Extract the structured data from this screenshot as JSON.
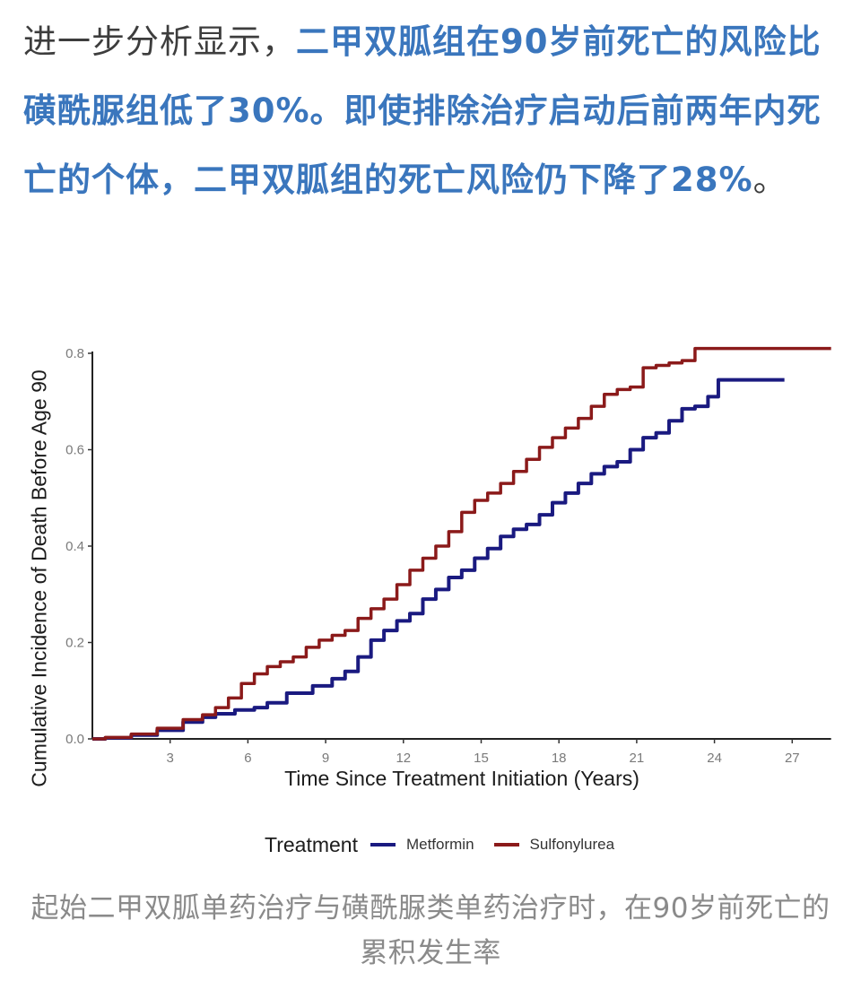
{
  "article": {
    "intro_plain": "进一步分析显示，",
    "intro_highlight": "二甲双胍组在90岁前死亡的风险比磺酰脲组低了30%。即使排除治疗启动后前两年内死亡的个体，二甲双胍组的死亡风险仍下降了28%",
    "intro_end": "。",
    "caption": "起始二甲双胍单药治疗与磺酰脲类单药治疗时，在90岁前死亡的累积发生率",
    "highlight_color": "#3a76bd"
  },
  "chart_data": {
    "type": "line",
    "title": "",
    "xlabel": "Time Since Treatment Initiation (Years)",
    "ylabel": "Cumulative Incidence of Death Before Age 90",
    "xlim": [
      0,
      28.5
    ],
    "ylim": [
      0,
      0.8
    ],
    "xticks": [
      3,
      6,
      9,
      12,
      15,
      18,
      21,
      24,
      27
    ],
    "yticks": [
      0.0,
      0.2,
      0.4,
      0.6,
      0.8
    ],
    "ytick_labels": [
      "0.0",
      "0.2",
      "0.4",
      "0.6",
      "0.8"
    ],
    "grid": false,
    "legend": {
      "title": "Treatment",
      "position": "bottom",
      "entries": [
        "Metformin",
        "Sulfonylurea"
      ]
    },
    "series": [
      {
        "name": "Metformin",
        "color": "#1a1a80",
        "points": [
          [
            0,
            0.0
          ],
          [
            1,
            0.002
          ],
          [
            2,
            0.008
          ],
          [
            3,
            0.018
          ],
          [
            4,
            0.035
          ],
          [
            4.5,
            0.045
          ],
          [
            5,
            0.052
          ],
          [
            6,
            0.06
          ],
          [
            6.5,
            0.065
          ],
          [
            7,
            0.075
          ],
          [
            8,
            0.095
          ],
          [
            9,
            0.11
          ],
          [
            9.5,
            0.125
          ],
          [
            10,
            0.14
          ],
          [
            10.5,
            0.17
          ],
          [
            11,
            0.205
          ],
          [
            11.5,
            0.225
          ],
          [
            12,
            0.245
          ],
          [
            12.5,
            0.26
          ],
          [
            13,
            0.29
          ],
          [
            13.5,
            0.31
          ],
          [
            14,
            0.335
          ],
          [
            14.5,
            0.35
          ],
          [
            15,
            0.375
          ],
          [
            15.5,
            0.395
          ],
          [
            16,
            0.42
          ],
          [
            16.5,
            0.435
          ],
          [
            17,
            0.445
          ],
          [
            17.5,
            0.465
          ],
          [
            18,
            0.49
          ],
          [
            18.5,
            0.51
          ],
          [
            19,
            0.53
          ],
          [
            19.5,
            0.55
          ],
          [
            20,
            0.565
          ],
          [
            20.5,
            0.575
          ],
          [
            21,
            0.6
          ],
          [
            21.5,
            0.625
          ],
          [
            22,
            0.635
          ],
          [
            22.5,
            0.66
          ],
          [
            23,
            0.685
          ],
          [
            23.5,
            0.69
          ],
          [
            24,
            0.71
          ],
          [
            24.3,
            0.745
          ],
          [
            26.7,
            0.745
          ]
        ]
      },
      {
        "name": "Sulfonylurea",
        "color": "#8b1a1a",
        "points": [
          [
            0,
            0.0
          ],
          [
            1,
            0.003
          ],
          [
            2,
            0.01
          ],
          [
            3,
            0.022
          ],
          [
            4,
            0.04
          ],
          [
            4.5,
            0.05
          ],
          [
            5,
            0.065
          ],
          [
            5.5,
            0.085
          ],
          [
            6,
            0.115
          ],
          [
            6.5,
            0.135
          ],
          [
            7,
            0.15
          ],
          [
            7.5,
            0.16
          ],
          [
            8,
            0.17
          ],
          [
            8.5,
            0.19
          ],
          [
            9,
            0.205
          ],
          [
            9.5,
            0.215
          ],
          [
            10,
            0.225
          ],
          [
            10.5,
            0.25
          ],
          [
            11,
            0.27
          ],
          [
            11.5,
            0.29
          ],
          [
            12,
            0.32
          ],
          [
            12.5,
            0.35
          ],
          [
            13,
            0.375
          ],
          [
            13.5,
            0.4
          ],
          [
            14,
            0.43
          ],
          [
            14.5,
            0.47
          ],
          [
            15,
            0.495
          ],
          [
            15.5,
            0.51
          ],
          [
            16,
            0.53
          ],
          [
            16.5,
            0.555
          ],
          [
            17,
            0.58
          ],
          [
            17.5,
            0.605
          ],
          [
            18,
            0.625
          ],
          [
            18.5,
            0.645
          ],
          [
            19,
            0.665
          ],
          [
            19.5,
            0.69
          ],
          [
            20,
            0.715
          ],
          [
            20.5,
            0.725
          ],
          [
            21,
            0.73
          ],
          [
            21.5,
            0.77
          ],
          [
            22,
            0.775
          ],
          [
            22.5,
            0.78
          ],
          [
            23,
            0.785
          ],
          [
            23.5,
            0.81
          ],
          [
            28.5,
            0.81
          ]
        ]
      }
    ]
  }
}
